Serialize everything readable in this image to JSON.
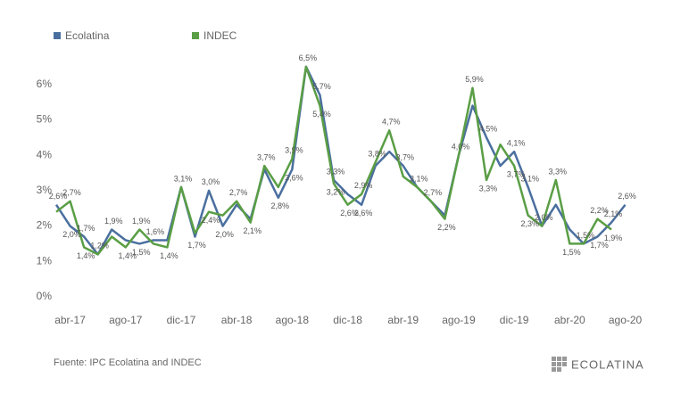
{
  "chart_data": {
    "type": "line",
    "categories": [
      null,
      "abr-17",
      null,
      null,
      null,
      "ago-17",
      null,
      null,
      null,
      "dic-17",
      null,
      null,
      null,
      "abr-18",
      null,
      null,
      null,
      "ago-18",
      null,
      null,
      null,
      "dic-18",
      null,
      null,
      null,
      "abr-19",
      null,
      null,
      null,
      "ago-19",
      null,
      null,
      null,
      "dic-19",
      null,
      null,
      null,
      "abr-20",
      null,
      null,
      null,
      "ago-20"
    ],
    "series": [
      {
        "name": "Ecolatina",
        "color": "#4a6f9f",
        "values": [
          2.6,
          2.0,
          1.7,
          1.2,
          1.9,
          1.6,
          1.5,
          1.6,
          1.6,
          3.1,
          1.7,
          3.0,
          2.0,
          2.6,
          2.2,
          3.6,
          2.8,
          3.6,
          6.5,
          5.7,
          3.3,
          2.9,
          2.6,
          3.7,
          4.1,
          3.7,
          3.1,
          2.7,
          2.3,
          4.0,
          5.4,
          4.5,
          3.7,
          4.1,
          3.1,
          2.0,
          2.6,
          1.9,
          1.5,
          1.7,
          2.1,
          2.6
        ],
        "value_labels": [
          "2,6%",
          "2,0%",
          "1,7%",
          null,
          "1,9%",
          null,
          "1,5%",
          "1,6%",
          null,
          null,
          "1,7%",
          "3,0%",
          "2,0%",
          null,
          null,
          null,
          "2,8%",
          "3,6%",
          "6,5%",
          "5,7%",
          "3,3%",
          null,
          "2,6%",
          null,
          null,
          "3,7%",
          "3,1%",
          "2,7%",
          null,
          "4,0%",
          null,
          "4,5%",
          null,
          "4,1%",
          "3,1%",
          "2,0%",
          null,
          null,
          null,
          "1,7%",
          "2,1%",
          "2,6%"
        ]
      },
      {
        "name": "INDEC",
        "color": "#5a9e45",
        "values": [
          2.4,
          2.7,
          1.4,
          1.2,
          1.7,
          1.4,
          1.9,
          1.5,
          1.4,
          3.1,
          1.8,
          2.4,
          2.3,
          2.7,
          2.1,
          3.7,
          3.1,
          3.9,
          6.5,
          5.4,
          3.2,
          2.6,
          2.9,
          3.8,
          4.7,
          3.4,
          3.1,
          2.7,
          2.2,
          4.0,
          5.9,
          3.3,
          4.3,
          3.7,
          2.3,
          2.0,
          3.3,
          1.5,
          1.5,
          2.2,
          1.9,
          null
        ],
        "value_labels": [
          null,
          "2,7%",
          "1,4%",
          "1,2%",
          null,
          "1,4%",
          "1,9%",
          null,
          "1,4%",
          "3,1%",
          null,
          "2,4%",
          null,
          "2,7%",
          "2,1%",
          "3,7%",
          null,
          "3,9%",
          null,
          "5,4%",
          "3,2%",
          "2,6%",
          "2,9%",
          "3,8%",
          "4,7%",
          null,
          null,
          null,
          "2,2%",
          null,
          "5,9%",
          "3,3%",
          null,
          "3,7%",
          "2,3%",
          null,
          "3,3%",
          "1,5%",
          "1,5%",
          "2,2%",
          "1,9%",
          null
        ]
      }
    ],
    "ylim": [
      0,
      7
    ],
    "yticks": [
      {
        "value": 0,
        "label": "0%"
      },
      {
        "value": 1,
        "label": "1%"
      },
      {
        "value": 2,
        "label": "2%"
      },
      {
        "value": 3,
        "label": "3%"
      },
      {
        "value": 4,
        "label": "4%"
      },
      {
        "value": 5,
        "label": "5%"
      },
      {
        "value": 6,
        "label": "6%"
      }
    ],
    "source": "Fuente: IPC Ecolatina and INDEC",
    "logo": "ECOLATINA",
    "legend": "top-left"
  }
}
